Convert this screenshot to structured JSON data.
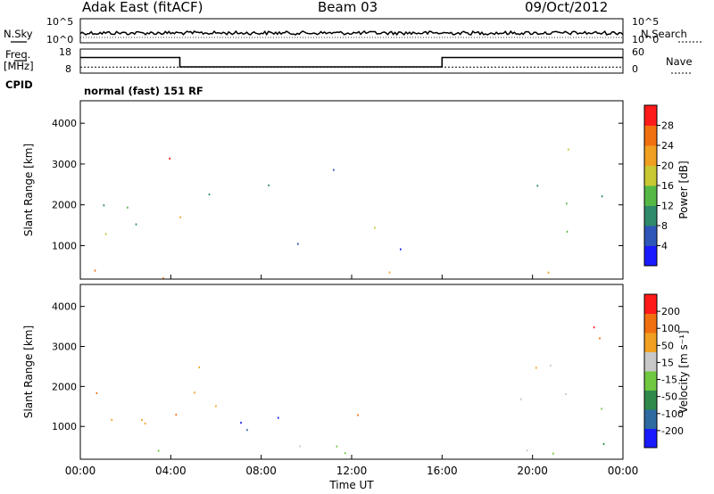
{
  "header": {
    "station": "Adak East (fitACF)",
    "beam": "Beam 03",
    "date": "09/Oct/2012"
  },
  "noise_panel": {
    "left_label": "N.Sky",
    "right_label": "N.Search",
    "ticks": [
      "10^5",
      "10^0"
    ]
  },
  "freq_panel": {
    "left_label": "Freq.",
    "left_unit": "[MHz]",
    "left_ticks": [
      "18",
      "8"
    ],
    "right_label": "Nave",
    "right_ticks": [
      "60",
      "0"
    ],
    "cpid_label": "CPID",
    "cpid_value": "normal (fast) 151 RF",
    "freq_segments": [
      {
        "t0": 0.0,
        "t1": 4.4,
        "mhz": 14.5
      },
      {
        "t0": 4.4,
        "t1": 16.0,
        "mhz": 10.6
      },
      {
        "t0": 16.0,
        "t1": 24.0,
        "mhz": 14.5
      }
    ],
    "freq_range": [
      8,
      18
    ],
    "nave_level": 15,
    "nave_range": [
      0,
      60
    ]
  },
  "chart_data": [
    {
      "type": "heatmap",
      "panel": "power",
      "xlabel": "",
      "ylabel": "Slant Range [km]",
      "ylim": [
        180,
        4550
      ],
      "yticks": [
        1000,
        2000,
        3000,
        4000
      ],
      "xlim": [
        0,
        24
      ],
      "colorbar": {
        "label": "Power [dB]",
        "ticks": [
          "28",
          "24",
          "20",
          "16",
          "12",
          "8",
          "4"
        ],
        "range": [
          0,
          32
        ],
        "colors": [
          "#1a1aff",
          "#2e55b8",
          "#2e8a6a",
          "#55b845",
          "#c8c832",
          "#f0a020",
          "#f07010",
          "#ff1a1a"
        ]
      },
      "echo_regions": [
        {
          "t0": 0.0,
          "t1": 1.5,
          "r0": 1700,
          "r1": 2350,
          "level": 2
        },
        {
          "t0": 1.0,
          "t1": 3.0,
          "r0": 1000,
          "r1": 2900,
          "level": 3
        },
        {
          "t0": 3.8,
          "t1": 5.0,
          "r0": 1000,
          "r1": 3200,
          "level": 6
        },
        {
          "t0": 4.5,
          "t1": 6.5,
          "r0": 1300,
          "r1": 2300,
          "level": 1
        },
        {
          "t0": 6.5,
          "t1": 9.0,
          "r0": 2000,
          "r1": 2600,
          "level": 1
        },
        {
          "t0": 7.0,
          "t1": 11.0,
          "r0": 800,
          "r1": 1200,
          "level": 2
        },
        {
          "t0": 8.0,
          "t1": 12.0,
          "r0": 2700,
          "r1": 3200,
          "level": 1
        },
        {
          "t0": 12.0,
          "t1": 14.0,
          "r0": 1100,
          "r1": 1500,
          "level": 4
        },
        {
          "t0": 14.0,
          "t1": 18.0,
          "r0": 800,
          "r1": 1000,
          "level": 1
        },
        {
          "t0": 19.5,
          "t1": 24.0,
          "r0": 1300,
          "r1": 2500,
          "level": 2
        },
        {
          "t0": 21.0,
          "t1": 23.5,
          "r0": 2800,
          "r1": 3600,
          "level": 5
        },
        {
          "t0": 0.0,
          "t1": 24.0,
          "r0": 200,
          "r1": 450,
          "level": 6
        }
      ]
    },
    {
      "type": "heatmap",
      "panel": "velocity",
      "xlabel": "Time UT",
      "ylabel": "Slant Range [km]",
      "ylim": [
        180,
        4550
      ],
      "yticks": [
        1000,
        2000,
        3000,
        4000
      ],
      "xlim": [
        0,
        24
      ],
      "xticks": [
        "00:00",
        "04:00",
        "08:00",
        "12:00",
        "16:00",
        "20:00",
        "00:00"
      ],
      "colorbar": {
        "label": "Velocity [m s⁻¹]",
        "ticks": [
          "200",
          "100",
          "50",
          "15",
          "-15",
          "-50",
          "-100",
          "-200"
        ],
        "colors": [
          "#1a1aff",
          "#2e6aa0",
          "#2e8a4a",
          "#70c840",
          "#c8c8c8",
          "#f0a020",
          "#f07010",
          "#ff1a1a"
        ]
      },
      "echo_regions": [
        {
          "t0": 0.0,
          "t1": 2.5,
          "r0": 1700,
          "r1": 2300,
          "level": 7
        },
        {
          "t0": 1.0,
          "t1": 3.0,
          "r0": 1000,
          "r1": 2800,
          "level": 5
        },
        {
          "t0": 3.8,
          "t1": 4.6,
          "r0": 1600,
          "r1": 2400,
          "level": 0
        },
        {
          "t0": 4.0,
          "t1": 5.5,
          "r0": 800,
          "r1": 3400,
          "level": 6
        },
        {
          "t0": 5.0,
          "t1": 7.0,
          "r0": 1300,
          "r1": 2300,
          "level": 4
        },
        {
          "t0": 7.0,
          "t1": 11.5,
          "r0": 900,
          "r1": 1700,
          "level": 0
        },
        {
          "t0": 12.0,
          "t1": 15.0,
          "r0": 1100,
          "r1": 1500,
          "level": 5
        },
        {
          "t0": 19.0,
          "t1": 24.0,
          "r0": 1200,
          "r1": 2600,
          "level": 4
        },
        {
          "t0": 21.0,
          "t1": 24.0,
          "r0": 2800,
          "r1": 3600,
          "level": 7
        },
        {
          "t0": 0.0,
          "t1": 24.0,
          "r0": 200,
          "r1": 600,
          "level": 3
        }
      ]
    }
  ]
}
